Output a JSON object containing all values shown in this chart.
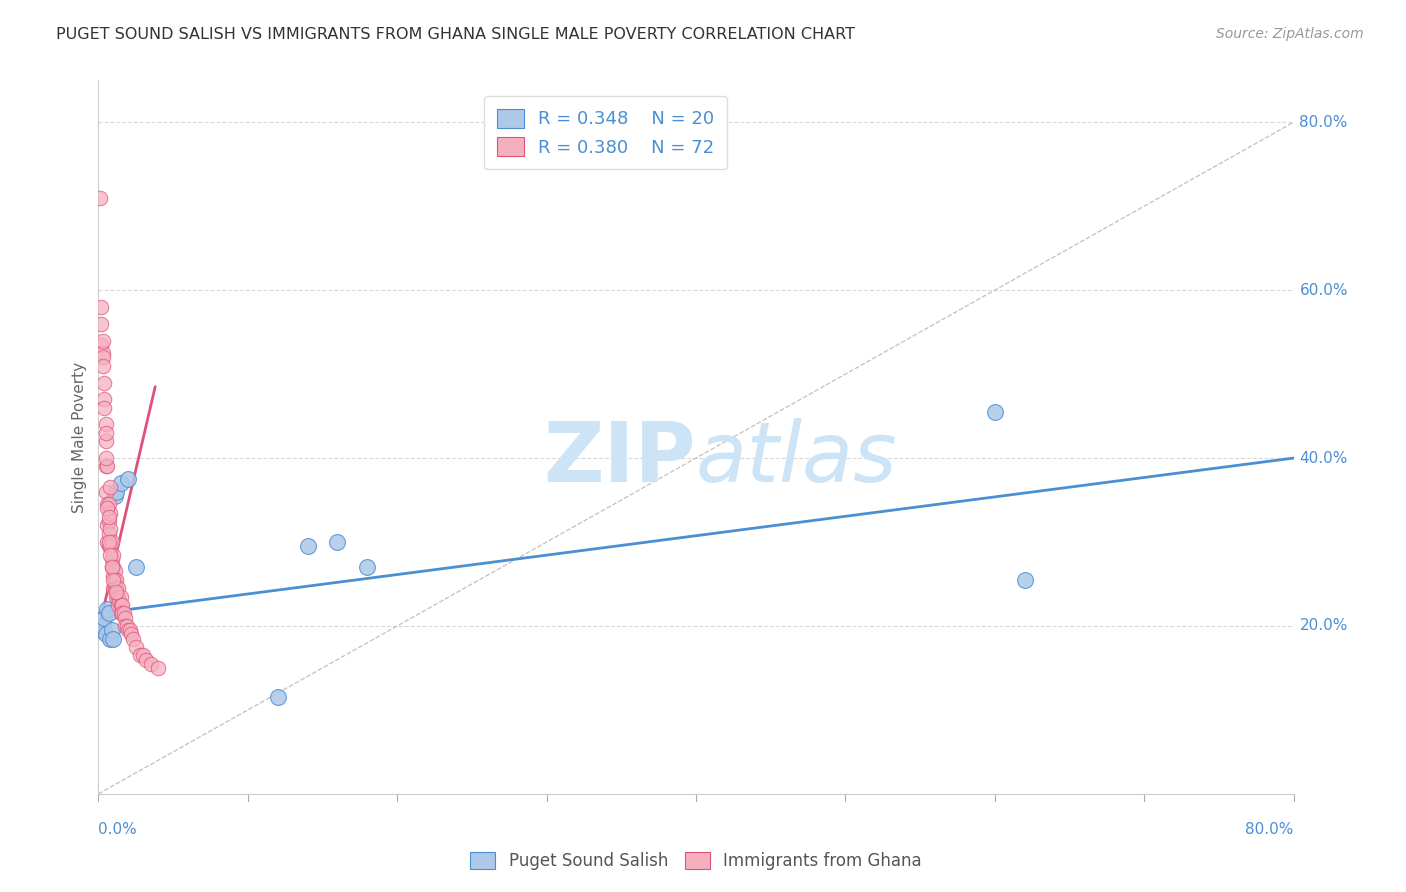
{
  "title": "PUGET SOUND SALISH VS IMMIGRANTS FROM GHANA SINGLE MALE POVERTY CORRELATION CHART",
  "source": "Source: ZipAtlas.com",
  "ylabel": "Single Male Poverty",
  "xlim": [
    0,
    0.8
  ],
  "ylim": [
    0,
    0.85
  ],
  "yticks": [
    0.2,
    0.4,
    0.6,
    0.8
  ],
  "yticklabels": [
    "20.0%",
    "40.0%",
    "60.0%",
    "80.0%"
  ],
  "xtick_left_label": "0.0%",
  "xtick_right_label": "80.0%",
  "blue_R": 0.348,
  "blue_N": 20,
  "pink_R": 0.38,
  "pink_N": 72,
  "blue_color": "#adc8e8",
  "blue_line_color": "#4a8fd4",
  "blue_edge_color": "#4a8fd4",
  "pink_color": "#f5b0c0",
  "pink_line_color": "#e0507a",
  "pink_edge_color": "#e0507a",
  "blue_scatter_x": [
    0.002,
    0.003,
    0.004,
    0.005,
    0.006,
    0.007,
    0.008,
    0.009,
    0.01,
    0.011,
    0.012,
    0.015,
    0.02,
    0.025,
    0.12,
    0.14,
    0.16,
    0.18,
    0.62,
    0.6
  ],
  "blue_scatter_y": [
    0.195,
    0.2,
    0.21,
    0.19,
    0.22,
    0.215,
    0.185,
    0.195,
    0.185,
    0.355,
    0.36,
    0.37,
    0.375,
    0.27,
    0.115,
    0.295,
    0.3,
    0.27,
    0.255,
    0.455
  ],
  "pink_scatter_x": [
    0.001,
    0.002,
    0.002,
    0.003,
    0.003,
    0.003,
    0.004,
    0.004,
    0.005,
    0.005,
    0.005,
    0.005,
    0.006,
    0.006,
    0.006,
    0.006,
    0.007,
    0.007,
    0.007,
    0.007,
    0.008,
    0.008,
    0.008,
    0.008,
    0.009,
    0.009,
    0.009,
    0.01,
    0.01,
    0.01,
    0.01,
    0.011,
    0.011,
    0.011,
    0.012,
    0.012,
    0.012,
    0.013,
    0.013,
    0.013,
    0.014,
    0.015,
    0.015,
    0.015,
    0.016,
    0.016,
    0.017,
    0.018,
    0.018,
    0.019,
    0.02,
    0.021,
    0.022,
    0.023,
    0.025,
    0.028,
    0.03,
    0.032,
    0.035,
    0.04,
    0.002,
    0.003,
    0.004,
    0.005,
    0.005,
    0.006,
    0.007,
    0.007,
    0.008,
    0.009,
    0.01,
    0.012
  ],
  "pink_scatter_y": [
    0.71,
    0.58,
    0.535,
    0.525,
    0.52,
    0.51,
    0.49,
    0.47,
    0.44,
    0.42,
    0.39,
    0.36,
    0.39,
    0.345,
    0.32,
    0.3,
    0.345,
    0.325,
    0.31,
    0.295,
    0.365,
    0.335,
    0.315,
    0.295,
    0.3,
    0.28,
    0.27,
    0.285,
    0.27,
    0.26,
    0.245,
    0.265,
    0.255,
    0.245,
    0.255,
    0.245,
    0.235,
    0.245,
    0.235,
    0.225,
    0.23,
    0.235,
    0.225,
    0.215,
    0.225,
    0.215,
    0.215,
    0.21,
    0.2,
    0.2,
    0.195,
    0.195,
    0.19,
    0.185,
    0.175,
    0.165,
    0.165,
    0.16,
    0.155,
    0.15,
    0.56,
    0.54,
    0.46,
    0.43,
    0.4,
    0.34,
    0.33,
    0.3,
    0.285,
    0.27,
    0.255,
    0.24
  ],
  "watermark_zip": "ZIP",
  "watermark_atlas": "atlas",
  "watermark_color": "#cce4f6",
  "blue_line_x0": 0.0,
  "blue_line_x1": 0.8,
  "blue_line_y0": 0.215,
  "blue_line_y1": 0.4,
  "pink_line_x0": 0.0,
  "pink_line_x1": 0.038,
  "pink_line_y0": 0.195,
  "pink_line_y1": 0.485,
  "diag_line_x0": 0.0,
  "diag_line_x1": 0.8,
  "diag_line_y0": 0.0,
  "diag_line_y1": 0.8,
  "grid_color": "#d8d8d8",
  "axis_label_color": "#4a8fd4",
  "title_color": "#333333",
  "ylabel_color": "#666666",
  "legend_text_color": "#4a8fd4",
  "bottom_legend_color": "#555555"
}
